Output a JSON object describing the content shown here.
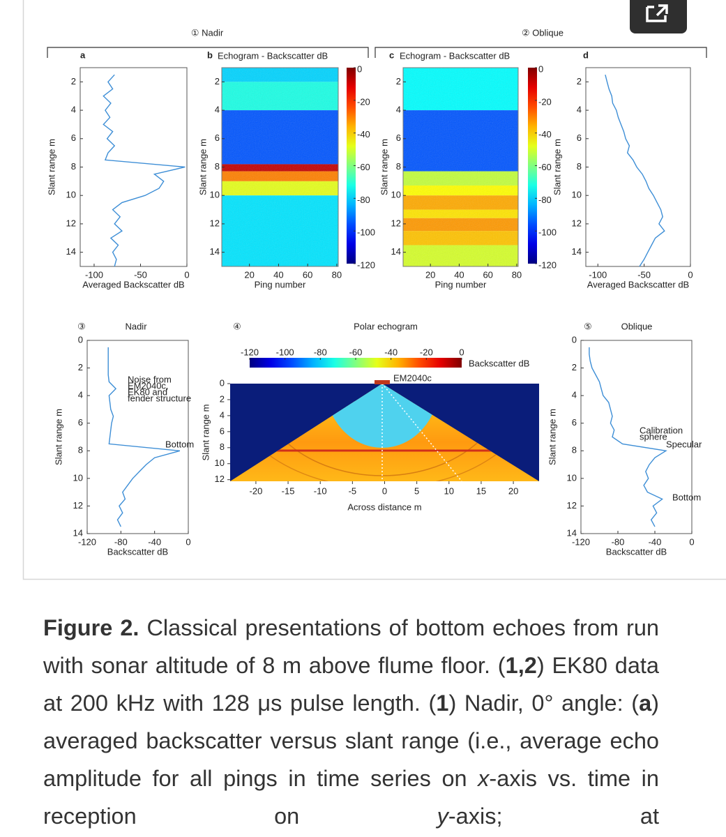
{
  "figure": {
    "groups": [
      "① Nadir",
      "② Oblique"
    ],
    "panels": [
      {
        "type": "profile",
        "title": "a",
        "ylabel": "Slant range m",
        "xlabel": "Averaged Backscatter dB",
        "xlim": [
          -115,
          0
        ],
        "xticks": [
          -100,
          -50,
          0
        ],
        "ylim": [
          1,
          15
        ],
        "yticks": [
          2,
          4,
          6,
          8,
          10,
          12,
          14
        ],
        "color": "#3d8ed6",
        "ranges": [
          1.5,
          2,
          2.5,
          3,
          3.5,
          4,
          4.5,
          5,
          5.5,
          6,
          6.5,
          7,
          7.5,
          8,
          8.5,
          9,
          9.5,
          10,
          10.5,
          11,
          11.5,
          12,
          12.5,
          13,
          13.5,
          14,
          14.5,
          15
        ],
        "values": [
          -78,
          -85,
          -80,
          -90,
          -82,
          -88,
          -83,
          -90,
          -80,
          -86,
          -78,
          -85,
          -88,
          -2,
          -35,
          -25,
          -30,
          -45,
          -70,
          -80,
          -72,
          -78,
          -70,
          -82,
          -74,
          -80,
          -76,
          -78
        ]
      },
      {
        "type": "echogram",
        "title": "b",
        "subtitle": "Echogram - Backscatter dB",
        "ylabel": "Slant range m",
        "xlabel": "Ping number",
        "xlim": [
          1,
          81
        ],
        "xticks": [
          20,
          40,
          60,
          80
        ],
        "ylim": [
          1,
          15
        ],
        "yticks": [
          2,
          4,
          6,
          8,
          10,
          12,
          14
        ],
        "clim": [
          -120,
          0
        ],
        "cticks": [
          0,
          -20,
          -40,
          -60,
          -80,
          -100,
          -120
        ],
        "bands": {
          "from": [
            1,
            2,
            4,
            7.8,
            8.3,
            9,
            10
          ],
          "to": [
            2,
            4,
            7.8,
            8.3,
            9,
            10,
            15
          ],
          "values": [
            -80,
            -72,
            -95,
            -8,
            -30,
            -48,
            -78
          ]
        }
      },
      {
        "type": "echogram",
        "title": "c",
        "subtitle": "Echogram - Backscatter dB",
        "ylabel": "Slant range m",
        "xlabel": "Ping number",
        "xlim": [
          1,
          81
        ],
        "xticks": [
          20,
          40,
          60,
          80
        ],
        "ylim": [
          1,
          15
        ],
        "yticks": [
          2,
          4,
          6,
          8,
          10,
          12,
          14
        ],
        "clim": [
          -120,
          0
        ],
        "cticks": [
          0,
          -20,
          -40,
          -60,
          -80,
          -100,
          -120
        ],
        "bands": {
          "from": [
            1,
            4,
            8.3,
            9.3,
            10,
            11,
            11.6,
            12.5,
            13.5
          ],
          "to": [
            4,
            8.3,
            9.3,
            10,
            11,
            11.6,
            12.5,
            13.5,
            15
          ],
          "values": [
            -75,
            -95,
            -52,
            -45,
            -35,
            -42,
            -33,
            -38,
            -50
          ]
        }
      },
      {
        "type": "profile",
        "title": "d",
        "ylabel": "Slant range m",
        "xlabel": "Averaged Backscatter dB",
        "xlim": [
          -113,
          0
        ],
        "xticks": [
          -100,
          -50,
          0
        ],
        "ylim": [
          1,
          15
        ],
        "yticks": [
          2,
          4,
          6,
          8,
          10,
          12,
          14
        ],
        "color": "#3d8ed6",
        "ranges": [
          1.5,
          2,
          2.5,
          3,
          3.5,
          4,
          4.5,
          5,
          5.5,
          6,
          6.5,
          7,
          7.5,
          8,
          8.5,
          9,
          9.5,
          10,
          10.5,
          11,
          11.5,
          12,
          12.5,
          13,
          13.5,
          14,
          14.5,
          15
        ],
        "values": [
          -92,
          -90,
          -88,
          -85,
          -84,
          -80,
          -78,
          -75,
          -72,
          -70,
          -66,
          -68,
          -62,
          -58,
          -52,
          -48,
          -45,
          -40,
          -36,
          -32,
          -30,
          -34,
          -28,
          -38,
          -42,
          -46,
          -50,
          -55
        ]
      },
      {
        "type": "profile",
        "badge": "③",
        "title": "Nadir",
        "ylabel": "Slant range m",
        "xlabel": "Backscatter dB",
        "xlim": [
          -120,
          0
        ],
        "xticks": [
          -120,
          -80,
          -40,
          0
        ],
        "ylim": [
          0,
          14
        ],
        "yticks": [
          0,
          2,
          4,
          6,
          8,
          10,
          12,
          14
        ],
        "color": "#3d8ed6",
        "ranges": [
          0.5,
          1,
          1.5,
          2,
          2.5,
          3,
          3.5,
          4,
          4.5,
          5,
          5.5,
          6,
          6.5,
          7,
          7.5,
          8,
          8.5,
          9,
          9.5,
          10,
          10.5,
          11,
          11.5,
          12,
          12.5,
          13,
          13.5
        ],
        "values": [
          -95,
          -95,
          -95,
          -95,
          -95,
          -94,
          -86,
          -94,
          -93,
          -92,
          -89,
          -91,
          -92,
          -93,
          -94,
          -10,
          -40,
          -50,
          -58,
          -66,
          -72,
          -78,
          -75,
          -82,
          -78,
          -84,
          -80
        ],
        "annotations": [
          {
            "lines": [
              "Noise from",
              "EM2040c,",
              "EK80 and",
              "fender structure"
            ]
          },
          {
            "lines": [
              "Bottom"
            ]
          }
        ]
      },
      {
        "type": "polar",
        "badge": "④",
        "title": "Polar echogram",
        "clim": [
          -120,
          0
        ],
        "cticks": [
          -120,
          -100,
          -80,
          -60,
          -40,
          -20,
          0
        ],
        "clabel": "Backscatter dB",
        "sonar": "EM2040c",
        "xlabel": "Across distance m",
        "ylabel": "Slant range m",
        "xlim": [
          -24,
          24
        ],
        "xticks": [
          -20,
          -15,
          -10,
          -5,
          0,
          5,
          10,
          15,
          20
        ],
        "ylim": [
          0,
          12.2
        ],
        "yticks": [
          0,
          2,
          4,
          6,
          8,
          10,
          12
        ]
      },
      {
        "type": "profile",
        "badge": "⑤",
        "title": "Oblique",
        "ylabel": "Slant range m",
        "xlabel": "Backscatter dB",
        "xlim": [
          -120,
          0
        ],
        "xticks": [
          -120,
          -80,
          -40,
          0
        ],
        "ylim": [
          0,
          14
        ],
        "yticks": [
          0,
          2,
          4,
          6,
          8,
          10,
          12,
          14
        ],
        "color": "#3d8ed6",
        "ranges": [
          0.5,
          1,
          1.5,
          2,
          2.5,
          3,
          3.5,
          4,
          4.5,
          5,
          5.5,
          6,
          6.5,
          7,
          7.5,
          8,
          8.5,
          9,
          9.5,
          10,
          10.5,
          11,
          11.5,
          12,
          12.5,
          13,
          13.5
        ],
        "values": [
          -111,
          -111,
          -110,
          -108,
          -104,
          -100,
          -98,
          -96,
          -90,
          -88,
          -86,
          -88,
          -84,
          -86,
          -75,
          -28,
          -40,
          -46,
          -50,
          -47,
          -52,
          -48,
          -32,
          -42,
          -38,
          -44,
          -40
        ],
        "annotations": [
          {
            "lines": [
              "Calibration",
              "sphere"
            ]
          },
          {
            "lines": [
              "Specular"
            ]
          },
          {
            "lines": [
              "Bottom"
            ]
          }
        ]
      }
    ]
  },
  "caption": [
    {
      "text": "Figure 2.",
      "bold": true
    },
    {
      "text": " Classical presentations of bottom echoes from run with sonar altitude of 8 m above flume floor. ("
    },
    {
      "text": "1,2",
      "bold": true
    },
    {
      "text": ") EK80 data at 200 kHz with 128 μs pulse length. ("
    },
    {
      "text": "1",
      "bold": true
    },
    {
      "text": ") Nadir, 0° angle: ("
    },
    {
      "text": "a",
      "bold": true
    },
    {
      "text": ") averaged backscatter versus slant range (i.e., average echo amplitude for all pings in time series on "
    },
    {
      "text": "x",
      "italic": true
    },
    {
      "text": "-axis vs. time in reception on "
    },
    {
      "text": "y",
      "italic": true
    },
    {
      "text": "-axis; at"
    }
  ]
}
